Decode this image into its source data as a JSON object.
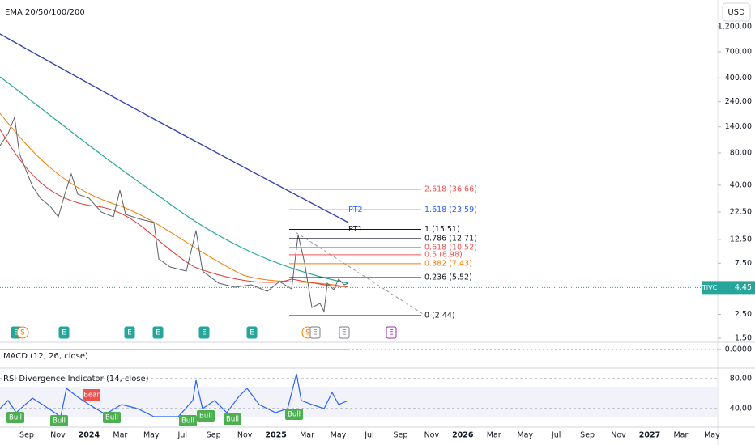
{
  "indicators": {
    "ema": "EMA 20/50/100/200",
    "macd": "MACD (12, 26, close)",
    "rsi": "RSI Divergence Indicator (14, close)"
  },
  "currency": "USD",
  "price_axis": {
    "log": true,
    "ticks": [
      {
        "value": 1200,
        "label": "1,200.00"
      },
      {
        "value": 700,
        "label": "700.00"
      },
      {
        "value": 400,
        "label": "400.00"
      },
      {
        "value": 240,
        "label": "240.00"
      },
      {
        "value": 140,
        "label": "140.00"
      },
      {
        "value": 80,
        "label": "80.00"
      },
      {
        "value": 40,
        "label": "40.00"
      },
      {
        "value": 22.5,
        "label": "22.50"
      },
      {
        "value": 12.5,
        "label": "12.50"
      },
      {
        "value": 7.5,
        "label": "7.50"
      },
      {
        "value": 2.5,
        "label": "2.50"
      },
      {
        "value": 1.5,
        "label": "1.50"
      }
    ],
    "current": {
      "symbol": "TIVC",
      "value": 4.45,
      "label": "4.45"
    }
  },
  "macd_axis": {
    "ticks": [
      {
        "value": 0,
        "label": "0.0000"
      }
    ]
  },
  "rsi_axis": {
    "ticks": [
      {
        "value": 80,
        "label": "80.00"
      },
      {
        "value": 40,
        "label": "40.00"
      }
    ]
  },
  "fib_levels": [
    {
      "label": "2.618 (36.66)",
      "value": 36.66,
      "color": "#ef5350"
    },
    {
      "label": "1.618 (23.59)",
      "value": 23.59,
      "color": "#2962ff"
    },
    {
      "label": "1 (15.51)",
      "value": 15.51,
      "color": "#131722"
    },
    {
      "label": "0.786 (12.71)",
      "value": 12.71,
      "color": "#131722"
    },
    {
      "label": "0.618 (10.52)",
      "value": 10.52,
      "color": "#ef5350"
    },
    {
      "label": "0.5 (8.98)",
      "value": 8.98,
      "color": "#ef5350"
    },
    {
      "label": "0.382 (7.43)",
      "value": 7.43,
      "color": "#f57c00"
    },
    {
      "label": "0.236 (5.52)",
      "value": 5.52,
      "color": "#131722"
    },
    {
      "label": "0 (2.44)",
      "value": 2.44,
      "color": "#131722"
    }
  ],
  "targets": [
    {
      "label": "PT2",
      "value": 23.59,
      "color": "#2962ff"
    },
    {
      "label": "PT1",
      "value": 15.51,
      "color": "#131722"
    }
  ],
  "x_labels": [
    "Sep",
    "Nov",
    "2024",
    "Mar",
    "May",
    "Jul",
    "Sep",
    "Nov",
    "2025",
    "Mar",
    "May",
    "Jul",
    "Sep",
    "Nov",
    "2026",
    "Mar",
    "May",
    "Jul",
    "Sep",
    "Nov",
    "2027",
    "Mar",
    "May"
  ],
  "events": [
    "E",
    "S",
    "E",
    "E",
    "E",
    "E",
    "E",
    "S",
    "E",
    "E",
    "E"
  ],
  "signals": [
    "Bull",
    "Bull",
    "Bear",
    "Bull",
    "Bull",
    "Bull",
    "Bull",
    "Bull"
  ]
}
